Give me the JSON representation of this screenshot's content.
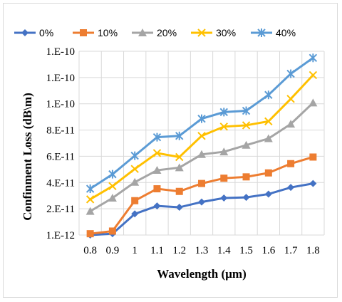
{
  "chart_data": {
    "type": "line",
    "xlabel": "Wavelength (µm)",
    "ylabel": "Confinment Loss (dB\\m)",
    "x": [
      0.8,
      0.9,
      1.0,
      1.1,
      1.2,
      1.3,
      1.4,
      1.5,
      1.6,
      1.7,
      1.8
    ],
    "x_tick_labels": [
      "0.8",
      "0.9",
      "1",
      "1.1",
      "1.2",
      "1.3",
      "1.4",
      "1.5",
      "1.6",
      "1.7",
      "1.8"
    ],
    "y_tick_labels": [
      "1.E-12",
      "2.E-11",
      "4.E-11",
      "6.E-11",
      "8.E-11",
      "1.E-10",
      "1.E-10",
      "1.E-10"
    ],
    "ylim": [
      1e-12,
      1.4e-10
    ],
    "grid": true,
    "legend_position": "top",
    "series": [
      {
        "name": "0%",
        "color": "#4472C4",
        "marker": "diamond",
        "values": [
          1e-12,
          2e-12,
          1.7e-11,
          2.3e-11,
          2.2e-11,
          2.6e-11,
          2.9e-11,
          2.95e-11,
          3.2e-11,
          3.7e-11,
          4e-11
        ]
      },
      {
        "name": "10%",
        "color": "#ED7D31",
        "marker": "square",
        "values": [
          2e-12,
          4e-12,
          2.7e-11,
          3.6e-11,
          3.4e-11,
          4e-11,
          4.4e-11,
          4.5e-11,
          4.8e-11,
          5.5e-11,
          6e-11
        ]
      },
      {
        "name": "20%",
        "color": "#A5A5A5",
        "marker": "triangle",
        "values": [
          1.9e-11,
          2.9e-11,
          4.1e-11,
          5e-11,
          5.2e-11,
          6.2e-11,
          6.4e-11,
          6.9e-11,
          7.4e-11,
          8.5e-11,
          1.01e-10
        ]
      },
      {
        "name": "30%",
        "color": "#FFC000",
        "marker": "x",
        "values": [
          2.8e-11,
          3.8e-11,
          5.1e-11,
          6.3e-11,
          6e-11,
          7.6e-11,
          8.3e-11,
          8.4e-11,
          8.7e-11,
          1.04e-10,
          1.22e-10
        ]
      },
      {
        "name": "40%",
        "color": "#5B9BD5",
        "marker": "star",
        "values": [
          3.6e-11,
          4.7e-11,
          6.1e-11,
          7.5e-11,
          7.6e-11,
          8.9e-11,
          9.4e-11,
          9.5e-11,
          1.07e-10,
          1.23e-10,
          1.35e-10
        ]
      }
    ]
  }
}
